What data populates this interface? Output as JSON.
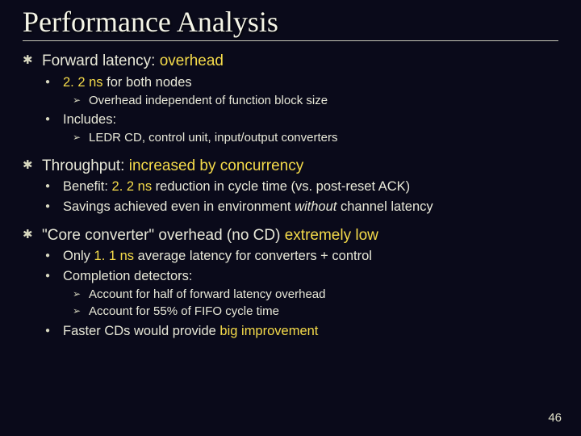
{
  "colors": {
    "background": "#0a0a1a",
    "text": "#e8e8d8",
    "highlight": "#f5db4a",
    "rule": "#c8c8b8"
  },
  "title": "Performance Analysis",
  "page_number": "46",
  "b1": {
    "text_a": "Forward latency: ",
    "text_hl": "overhead",
    "sub1": {
      "a": "2. 2 ns",
      "b": " for both nodes",
      "s1": "Overhead independent of function block size"
    },
    "sub2": {
      "a": "Includes:",
      "s1": " LEDR CD, control unit, input/output converters"
    }
  },
  "b2": {
    "text_a": "Throughput: ",
    "text_hl": "increased by concurrency",
    "sub1": {
      "a": "Benefit:  ",
      "b": "2. 2 ns",
      "c": " reduction in cycle time (vs. post-reset ACK)"
    },
    "sub2": {
      "a": "Savings achieved even in environment ",
      "b": "without ",
      "c": "channel latency"
    }
  },
  "b3": {
    "text_a": "\"Core converter\" overhead (no CD) ",
    "text_hl": "extremely low",
    "sub1": {
      "a": "Only ",
      "b": "1. 1 ns",
      "c": " average latency for converters + control"
    },
    "sub2": {
      "a": "Completion detectors:",
      "s1": "Account for half of forward latency overhead",
      "s2": "Account for 55% of FIFO cycle time"
    },
    "sub3": {
      "a": "Faster CDs would provide ",
      "b": "big improvement"
    }
  }
}
